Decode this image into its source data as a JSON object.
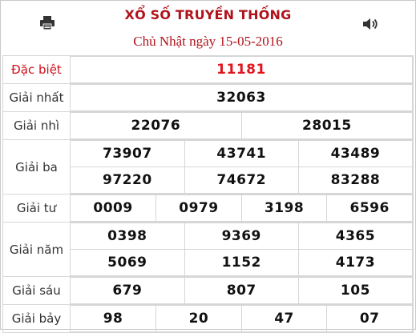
{
  "header": {
    "title": "XỔ SỐ TRUYỀN THỐNG",
    "date": "Chủ Nhật ngày 15-05-2016",
    "print_icon": "printer-icon",
    "sound_icon": "speaker-icon"
  },
  "prizes": {
    "special": {
      "label": "Đặc biệt",
      "numbers": [
        "11181"
      ]
    },
    "first": {
      "label": "Giải nhất",
      "numbers": [
        "32063"
      ]
    },
    "second": {
      "label": "Giải nhì",
      "numbers": [
        "22076",
        "28015"
      ]
    },
    "third": {
      "label": "Giải ba",
      "numbers": [
        "73907",
        "43741",
        "43489",
        "97220",
        "74672",
        "83288"
      ]
    },
    "fourth": {
      "label": "Giải tư",
      "numbers": [
        "0009",
        "0979",
        "3198",
        "6596"
      ]
    },
    "fifth": {
      "label": "Giải năm",
      "numbers": [
        "0398",
        "9369",
        "4365",
        "5069",
        "1152",
        "4173"
      ]
    },
    "sixth": {
      "label": "Giải sáu",
      "numbers": [
        "679",
        "807",
        "105"
      ]
    },
    "seventh": {
      "label": "Giải bảy",
      "numbers": [
        "98",
        "20",
        "47",
        "07"
      ]
    }
  },
  "colors": {
    "title": "#b0121b",
    "special": "#e0141e",
    "border": "#d6d6d6"
  }
}
